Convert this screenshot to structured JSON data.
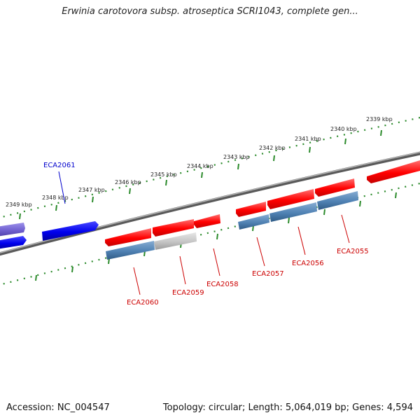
{
  "title": "Erwinia carotovora subsp. atroseptica SCRI1043, complete gen...",
  "footer": {
    "accession": "Accession: NC_004547",
    "topology": "Topology: circular; Length: 5,064,019 bp; Genes: 4,594"
  },
  "colors": {
    "ruler": "#2a8a2a",
    "backbone": "#808080",
    "forward_gene": "#ff0000",
    "reverse_gene": "#0000ee",
    "reverse_gene_faded": "#7a6ad6",
    "forward_cds": "#4f81b3",
    "forward_cds_faded": "#c8c8c8",
    "label_forward": "#cc0000",
    "label_reverse": "#0000cc"
  },
  "ticks": [
    {
      "label": "2349 kbp"
    },
    {
      "label": "2348 kbp"
    },
    {
      "label": "2347 kbp"
    },
    {
      "label": "2346 kbp"
    },
    {
      "label": "2345 kbp"
    },
    {
      "label": "2344 kbp"
    },
    {
      "label": "2343 kbp"
    },
    {
      "label": "2342 kbp"
    },
    {
      "label": "2341 kbp"
    },
    {
      "label": "2340 kbp"
    },
    {
      "label": "2339 kbp"
    }
  ],
  "gene_labels": [
    {
      "name": "ECA2061",
      "strand": "reverse"
    },
    {
      "name": "ECA2060",
      "strand": "forward"
    },
    {
      "name": "ECA2059",
      "strand": "forward"
    },
    {
      "name": "ECA2058",
      "strand": "forward"
    },
    {
      "name": "ECA2057",
      "strand": "forward"
    },
    {
      "name": "ECA2056",
      "strand": "forward"
    },
    {
      "name": "ECA2055",
      "strand": "forward"
    }
  ]
}
